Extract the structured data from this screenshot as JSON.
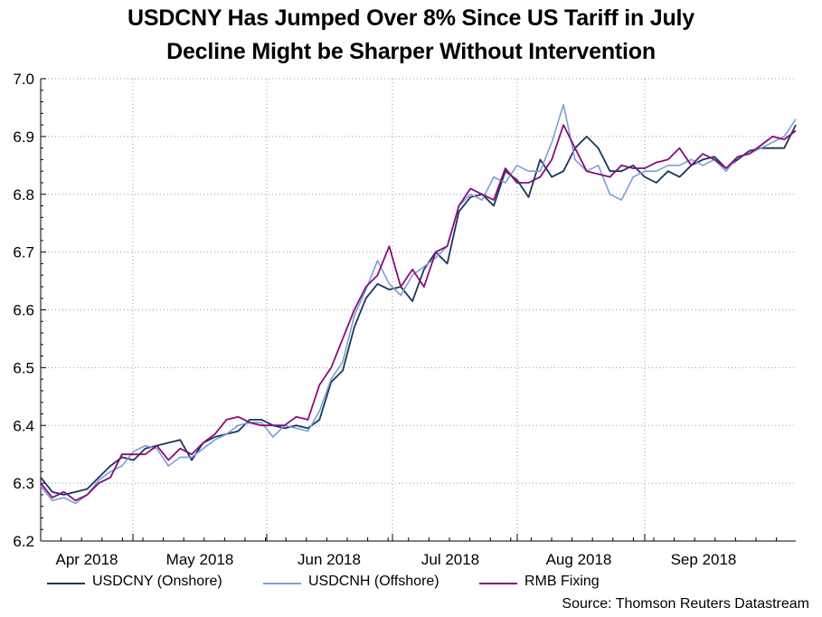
{
  "chart_data": {
    "type": "line",
    "title": "USDCNY Has Jumped Over 8% Since US Tariff in July",
    "subtitle": "Decline Might be Sharper Without Intervention",
    "source": "Source: Thomson Reuters Datastream",
    "xlabel": "",
    "ylabel": "",
    "ylim": [
      6.2,
      7.0
    ],
    "y_ticks": [
      "6.2",
      "6.3",
      "6.4",
      "6.5",
      "6.6",
      "6.7",
      "6.8",
      "6.9",
      "7.0"
    ],
    "x_ticks": [
      "Apr 2018",
      "May 2018",
      "Jun 2018",
      "Jul 2018",
      "Aug 2018",
      "Sep 2018"
    ],
    "grid": true,
    "x_range_days": [
      0,
      130
    ],
    "month_start_days": [
      6,
      36,
      67,
      97,
      128
    ],
    "x_tick_days": [
      2.5,
      21,
      52,
      82,
      113,
      143
    ],
    "series": [
      {
        "name": "USDCNY (Onshore)",
        "color": "#17375e",
        "x": [
          0,
          2,
          4,
          6,
          8,
          10,
          12,
          14,
          16,
          18,
          20,
          22,
          24,
          26,
          28,
          30,
          32,
          34,
          36,
          38,
          40,
          42,
          44,
          46,
          48,
          50,
          52,
          54,
          56,
          58,
          60,
          62,
          64,
          66,
          68,
          70,
          72,
          74,
          76,
          78,
          80,
          82,
          84,
          86,
          88,
          90,
          92,
          94,
          96,
          98,
          100,
          102,
          104,
          106,
          108,
          110,
          112,
          114,
          116,
          118,
          120,
          122,
          124,
          126,
          128,
          130
        ],
        "values": [
          6.31,
          6.285,
          6.28,
          6.285,
          6.29,
          6.31,
          6.33,
          6.345,
          6.34,
          6.36,
          6.365,
          6.37,
          6.375,
          6.34,
          6.37,
          6.38,
          6.385,
          6.39,
          6.41,
          6.41,
          6.4,
          6.395,
          6.4,
          6.395,
          6.41,
          6.475,
          6.495,
          6.57,
          6.62,
          6.645,
          6.635,
          6.64,
          6.615,
          6.67,
          6.7,
          6.68,
          6.77,
          6.795,
          6.8,
          6.78,
          6.84,
          6.825,
          6.795,
          6.86,
          6.83,
          6.84,
          6.88,
          6.9,
          6.88,
          6.84,
          6.84,
          6.85,
          6.83,
          6.82,
          6.84,
          6.83,
          6.85,
          6.86,
          6.865,
          6.845,
          6.86,
          6.875,
          6.88,
          6.88,
          6.88,
          6.92
        ]
      },
      {
        "name": "USDCNH (Offshore)",
        "color": "#7b9fd4",
        "x": [
          0,
          2,
          4,
          6,
          8,
          10,
          12,
          14,
          16,
          18,
          20,
          22,
          24,
          26,
          28,
          30,
          32,
          34,
          36,
          38,
          40,
          42,
          44,
          46,
          48,
          50,
          52,
          54,
          56,
          58,
          60,
          62,
          64,
          66,
          68,
          70,
          72,
          74,
          76,
          78,
          80,
          82,
          84,
          86,
          88,
          90,
          92,
          94,
          96,
          98,
          100,
          102,
          104,
          106,
          108,
          110,
          112,
          114,
          116,
          118,
          120,
          122,
          124,
          126,
          128,
          130
        ],
        "values": [
          6.295,
          6.27,
          6.275,
          6.265,
          6.28,
          6.305,
          6.32,
          6.33,
          6.355,
          6.365,
          6.36,
          6.33,
          6.345,
          6.345,
          6.36,
          6.375,
          6.385,
          6.4,
          6.405,
          6.405,
          6.38,
          6.4,
          6.395,
          6.39,
          6.425,
          6.48,
          6.51,
          6.59,
          6.635,
          6.685,
          6.645,
          6.625,
          6.66,
          6.675,
          6.69,
          6.71,
          6.78,
          6.8,
          6.79,
          6.83,
          6.82,
          6.85,
          6.84,
          6.84,
          6.89,
          6.955,
          6.86,
          6.84,
          6.85,
          6.8,
          6.79,
          6.83,
          6.84,
          6.84,
          6.85,
          6.85,
          6.86,
          6.85,
          6.86,
          6.84,
          6.865,
          6.87,
          6.88,
          6.89,
          6.9,
          6.93
        ]
      },
      {
        "name": "RMB Fixing",
        "color": "#8a0c7a",
        "x": [
          0,
          2,
          4,
          6,
          8,
          10,
          12,
          14,
          16,
          18,
          20,
          22,
          24,
          26,
          28,
          30,
          32,
          34,
          36,
          38,
          40,
          42,
          44,
          46,
          48,
          50,
          52,
          54,
          56,
          58,
          60,
          62,
          64,
          66,
          68,
          70,
          72,
          74,
          76,
          78,
          80,
          82,
          84,
          86,
          88,
          90,
          92,
          94,
          96,
          98,
          100,
          102,
          104,
          106,
          108,
          110,
          112,
          114,
          116,
          118,
          120,
          122,
          124,
          126,
          128,
          130
        ],
        "values": [
          6.3,
          6.275,
          6.285,
          6.27,
          6.28,
          6.3,
          6.31,
          6.35,
          6.35,
          6.35,
          6.365,
          6.34,
          6.36,
          6.35,
          6.37,
          6.385,
          6.41,
          6.415,
          6.405,
          6.4,
          6.4,
          6.4,
          6.415,
          6.41,
          6.47,
          6.5,
          6.55,
          6.6,
          6.64,
          6.66,
          6.71,
          6.64,
          6.67,
          6.64,
          6.7,
          6.71,
          6.78,
          6.81,
          6.8,
          6.79,
          6.845,
          6.82,
          6.82,
          6.83,
          6.86,
          6.92,
          6.88,
          6.84,
          6.835,
          6.83,
          6.85,
          6.845,
          6.845,
          6.855,
          6.86,
          6.88,
          6.85,
          6.87,
          6.86,
          6.845,
          6.865,
          6.87,
          6.885,
          6.9,
          6.895,
          6.91
        ]
      }
    ]
  }
}
